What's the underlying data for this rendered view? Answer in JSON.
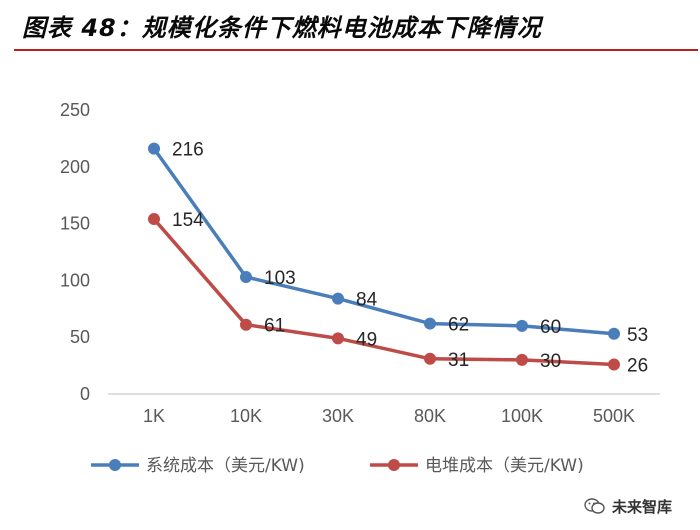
{
  "title": "图表 48：规模化条件下燃料电池成本下降情况",
  "watermark": "未来智库",
  "chart_data": {
    "type": "line",
    "categories": [
      "1K",
      "10K",
      "30K",
      "80K",
      "100K",
      "500K"
    ],
    "series": [
      {
        "name": "系统成本（美元/KW)",
        "values": [
          216,
          103,
          84,
          62,
          60,
          53
        ],
        "color": "#4a7ebb"
      },
      {
        "name": "电堆成本（美元/KW)",
        "values": [
          154,
          61,
          49,
          31,
          30,
          26
        ],
        "color": "#be4b48"
      }
    ],
    "yticks": [
      0,
      50,
      100,
      150,
      200,
      250
    ],
    "ylim": [
      0,
      250
    ],
    "grid": false,
    "legend_position": "bottom",
    "colors": {
      "title_rule": "#b32121",
      "axis": "#bfbfbf",
      "tick_text": "#595959"
    }
  }
}
